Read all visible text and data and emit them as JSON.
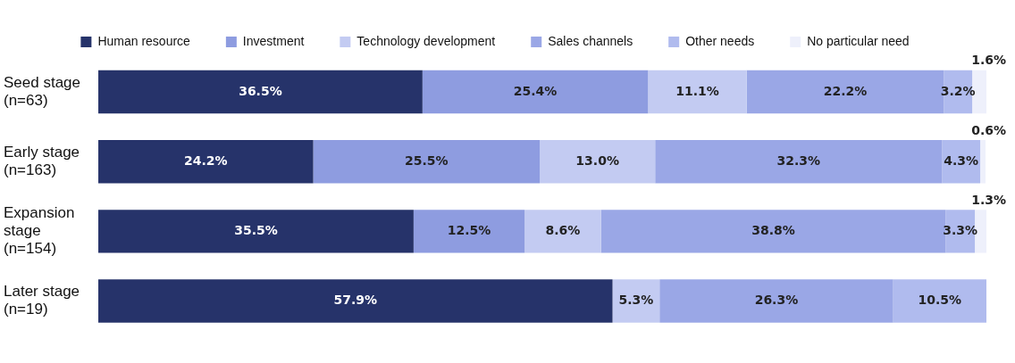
{
  "chart_data": {
    "type": "bar",
    "orientation": "horizontal",
    "stacked": true,
    "legend": "top",
    "grid": false,
    "tick_labels": "y",
    "xlim": [
      0,
      100
    ],
    "categories": [
      "Seed stage\n(n=63)",
      "Early stage\n(n=163)",
      "Expansion\nstage\n(n=154)",
      "Later stage\n(n=19)"
    ],
    "series": [
      {
        "name": "Human resource",
        "color": "#26336a",
        "values": [
          36.5,
          24.2,
          35.5,
          57.9
        ],
        "value_labels": [
          "36.5%",
          "24.2%",
          "35.5%",
          "57.9%"
        ]
      },
      {
        "name": "Investment",
        "color": "#8e9ce0",
        "values": [
          25.4,
          25.5,
          12.5,
          null
        ],
        "value_labels": [
          "25.4%",
          "25.5%",
          "12.5%",
          null
        ]
      },
      {
        "name": "Technology development",
        "color": "#c3cbf2",
        "values": [
          11.1,
          13.0,
          8.6,
          5.3
        ],
        "value_labels": [
          "11.1%",
          "13.0%",
          "8.6%",
          "5.3%"
        ]
      },
      {
        "name": "Sales channels",
        "color": "#9aa7e6",
        "values": [
          22.2,
          32.3,
          38.8,
          26.3
        ],
        "value_labels": [
          "22.2%",
          "32.3%",
          "38.8%",
          "26.3%"
        ]
      },
      {
        "name": "Other needs",
        "color": "#b0bbee",
        "values": [
          3.2,
          4.3,
          3.3,
          10.5
        ],
        "value_labels": [
          "3.2%",
          "4.3%",
          "3.3%",
          "10.5%"
        ]
      },
      {
        "name": "No particular need",
        "color": "#eef0fb",
        "values": [
          1.6,
          0.6,
          1.3,
          null
        ],
        "value_labels": [
          "1.6%",
          "0.6%",
          "1.3%",
          null
        ]
      }
    ]
  }
}
